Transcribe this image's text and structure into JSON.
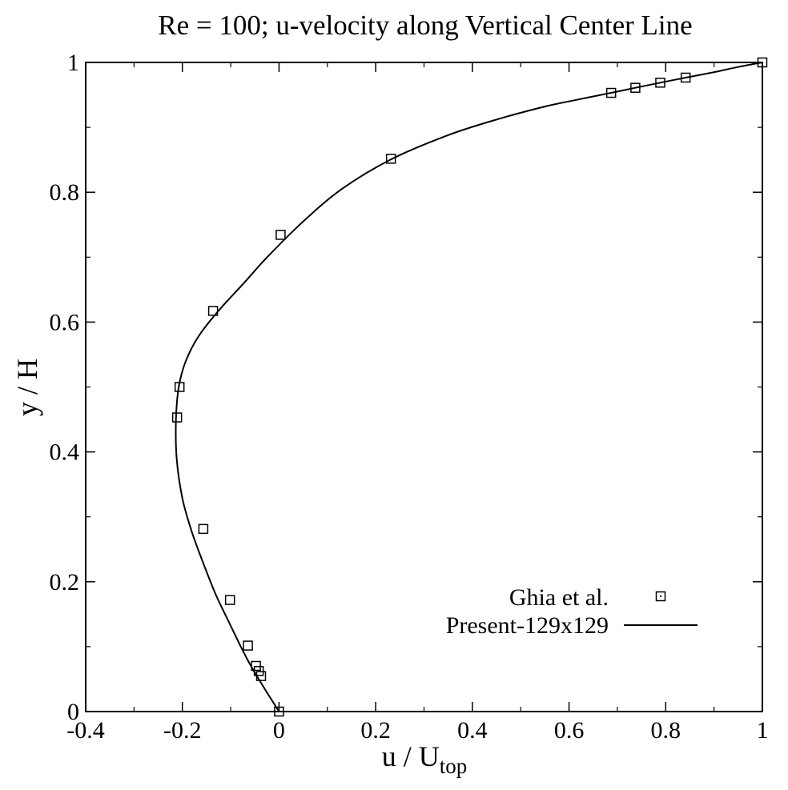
{
  "chart_data": {
    "type": "line",
    "title": "Re = 100; u-velocity along Vertical Center Line",
    "xlabel": "u / U",
    "xlabel_sub": "top",
    "ylabel": "y / H",
    "xlim": [
      -0.4,
      1
    ],
    "ylim": [
      0,
      1
    ],
    "xticks": [
      -0.4,
      -0.2,
      0,
      0.2,
      0.4,
      0.6,
      0.8,
      1
    ],
    "xtick_labels": [
      "-0.4",
      "-0.2",
      "0",
      "0.2",
      "0.4",
      "0.6",
      "0.8",
      "1"
    ],
    "yticks": [
      0,
      0.2,
      0.4,
      0.6,
      0.8,
      1
    ],
    "ytick_labels": [
      "0",
      "0.2",
      "0.4",
      "0.6",
      "0.8",
      "1"
    ],
    "grid": false,
    "legend_position": "bottom-right",
    "series": [
      {
        "name": "Ghia et al.",
        "style": "markers",
        "marker": "square",
        "x": [
          0,
          -0.03717,
          -0.04192,
          -0.04775,
          -0.06434,
          -0.1015,
          -0.15662,
          -0.2109,
          -0.20581,
          -0.13641,
          0.00332,
          0.23151,
          0.68717,
          0.73722,
          0.78871,
          0.84123,
          1
        ],
        "y": [
          0,
          0.0547,
          0.0625,
          0.0703,
          0.1016,
          0.1719,
          0.2813,
          0.4531,
          0.5,
          0.6172,
          0.7344,
          0.8516,
          0.9531,
          0.9609,
          0.9688,
          0.9766,
          1
        ]
      },
      {
        "name": "Present-129x129",
        "style": "line",
        "x": [
          0,
          -0.0169,
          -0.0337,
          -0.0502,
          -0.0653,
          -0.079,
          -0.1051,
          -0.1307,
          -0.1574,
          -0.1818,
          -0.2004,
          -0.2118,
          -0.2132,
          -0.2074,
          -0.1929,
          -0.1648,
          -0.1222,
          -0.0727,
          -0.0245,
          0.05,
          0.13,
          0.23,
          0.35,
          0.45,
          0.55,
          0.62,
          0.6872,
          0.7372,
          0.7887,
          0.8412,
          0.9,
          0.95,
          1
        ],
        "y": [
          0,
          0.02,
          0.04,
          0.06,
          0.08,
          0.1,
          0.14,
          0.18,
          0.23,
          0.28,
          0.33,
          0.39,
          0.45,
          0.5,
          0.54,
          0.58,
          0.62,
          0.66,
          0.7,
          0.755,
          0.805,
          0.85,
          0.888,
          0.912,
          0.932,
          0.943,
          0.9531,
          0.9609,
          0.9688,
          0.9766,
          0.985,
          0.993,
          1
        ]
      }
    ]
  }
}
